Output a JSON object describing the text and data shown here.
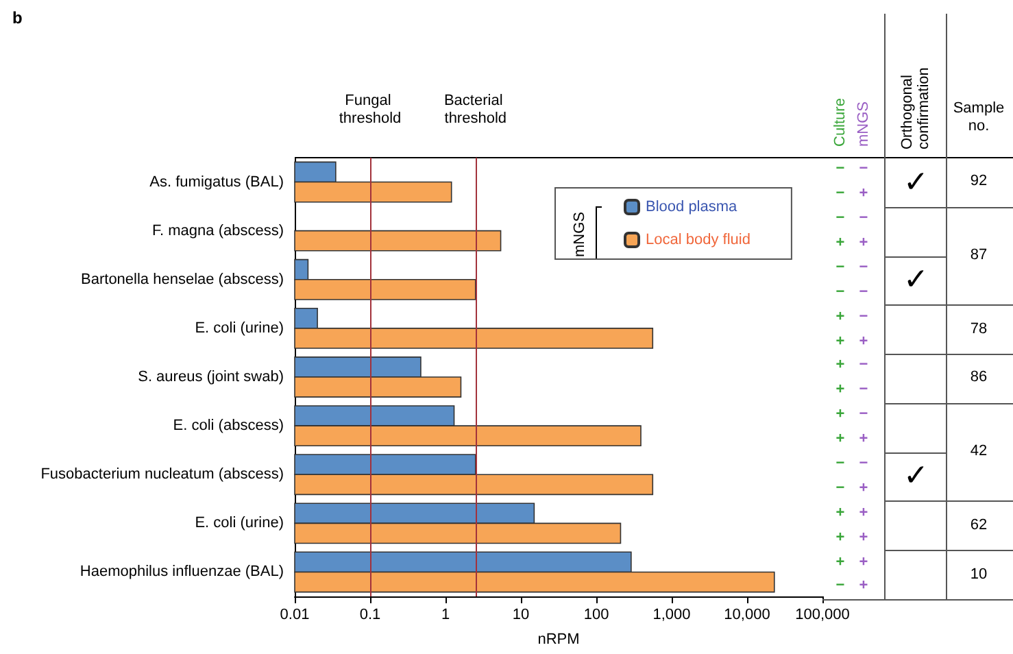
{
  "chart_data": [
    {
      "type": "bar",
      "orientation": "horizontal",
      "title": "b",
      "xlabel": "nRPM",
      "legend_title": "mNGS",
      "legend": "top right",
      "log": "x",
      "grid": false,
      "categories": [
        "As. fumigatus (BAL)",
        "F. magna (abscess)",
        "Bartonella henselae (abscess)",
        "E. coli (urine)",
        "S. aureus (joint swab)",
        "E. coli (abscess)",
        "Fusobacterium nucleatum (abscess)",
        "E. coli (urine)",
        "Haemophilus influenzae (BAL)"
      ],
      "series": [
        {
          "name": "Blood plasma",
          "color": "#5b8ec6",
          "values": [
            0.035,
            null,
            0.015,
            0.02,
            0.47,
            1.3,
            2.5,
            15,
            290
          ]
        },
        {
          "name": "Local body fluid",
          "color": "#f7a556",
          "values": [
            1.2,
            5.4,
            2.5,
            560,
            1.6,
            390,
            560,
            210,
            23000
          ]
        }
      ],
      "xlim": [
        0.01,
        100000
      ],
      "xticks": [
        0.01,
        0.1,
        1,
        10,
        100,
        {
          "value": 1000,
          "label": "1,000"
        },
        {
          "value": 10000,
          "label": "10,000"
        },
        {
          "value": 100000,
          "label": "100,000"
        }
      ],
      "ref_lines": [
        {
          "axis": "x",
          "value": 0.1,
          "label": "Fungal threshold",
          "color": "#a3323c"
        },
        {
          "axis": "x",
          "value": 2.5,
          "label": "Bacterial threshold",
          "color": "#a3323c"
        }
      ]
    },
    {
      "type": "other",
      "categories": [
        "Culture",
        "mNGS",
        "Orthogonal confirmation",
        "Sample no."
      ],
      "colors": [
        "#3aa63a",
        "#9a5fc4",
        "#000000",
        "#000000"
      ],
      "cell_labels": [
        [
          "−",
          "−",
          "✓",
          "92"
        ],
        [
          "−",
          "+",
          null,
          null
        ],
        [
          "−",
          "−",
          null,
          "87"
        ],
        [
          "+",
          "+",
          null,
          null
        ],
        [
          "−",
          "−",
          "✓",
          null
        ],
        [
          "−",
          "−",
          null,
          null
        ],
        [
          "+",
          "−",
          null,
          "78"
        ],
        [
          "+",
          "+",
          null,
          null
        ],
        [
          "+",
          "−",
          null,
          "86"
        ],
        [
          "+",
          "−",
          null,
          null
        ],
        [
          "+",
          "−",
          null,
          "42"
        ],
        [
          "+",
          "+",
          null,
          null
        ],
        [
          "−",
          "−",
          "✓",
          null
        ],
        [
          "−",
          "+",
          null,
          null
        ],
        [
          "+",
          "+",
          null,
          "62"
        ],
        [
          "+",
          "+",
          null,
          null
        ],
        [
          "+",
          "+",
          null,
          "10"
        ],
        [
          "−",
          "+",
          null,
          null
        ]
      ]
    }
  ]
}
